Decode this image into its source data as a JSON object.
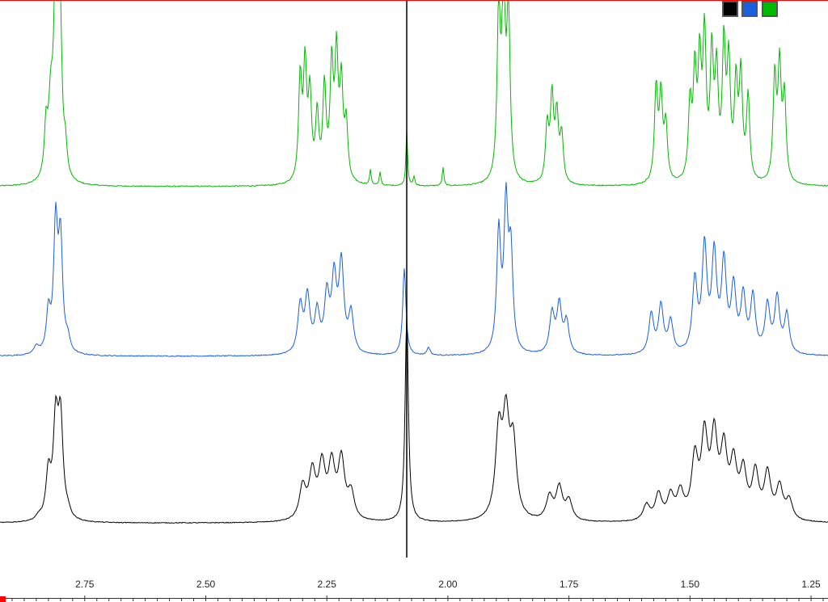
{
  "chart_data": {
    "type": "line",
    "title": "",
    "xlabel": "",
    "ylabel": "",
    "x_reversed": true,
    "xlim": [
      2.925,
      1.215
    ],
    "ylim": [
      0,
      1
    ],
    "grid": false,
    "x_ticks": [
      2.75,
      2.5,
      2.25,
      2.0,
      1.75,
      1.5,
      1.25
    ],
    "x_tick_labels": [
      "2.75",
      "2.50",
      "2.25",
      "2.00",
      "1.75",
      "1.50",
      "1.25"
    ],
    "series": [
      {
        "color": "#00bb00",
        "offset": 0.67,
        "scale": 0.33,
        "peaks": [
          [
            2.82,
            0.4,
            0.006
          ],
          [
            2.81,
            1.0,
            0.004
          ],
          [
            2.805,
            0.75,
            0.004
          ],
          [
            2.8,
            0.55,
            0.004
          ],
          [
            2.79,
            0.15,
            0.004
          ],
          [
            2.83,
            0.25,
            0.004
          ],
          [
            2.305,
            0.55,
            0.004
          ],
          [
            2.295,
            0.6,
            0.004
          ],
          [
            2.285,
            0.45,
            0.004
          ],
          [
            2.27,
            0.35,
            0.004
          ],
          [
            2.255,
            0.5,
            0.004
          ],
          [
            2.24,
            0.6,
            0.004
          ],
          [
            2.23,
            0.65,
            0.004
          ],
          [
            2.22,
            0.5,
            0.004
          ],
          [
            2.21,
            0.3,
            0.004
          ],
          [
            2.16,
            0.08,
            0.002
          ],
          [
            2.14,
            0.07,
            0.002
          ],
          [
            2.085,
            0.3,
            0.002
          ],
          [
            2.07,
            0.05,
            0.002
          ],
          [
            2.01,
            0.1,
            0.002
          ],
          [
            1.895,
            0.9,
            0.004
          ],
          [
            1.885,
            1.0,
            0.004
          ],
          [
            1.875,
            0.9,
            0.004
          ],
          [
            1.795,
            0.3,
            0.004
          ],
          [
            1.785,
            0.45,
            0.004
          ],
          [
            1.775,
            0.35,
            0.004
          ],
          [
            1.765,
            0.25,
            0.004
          ],
          [
            1.57,
            0.5,
            0.004
          ],
          [
            1.56,
            0.45,
            0.004
          ],
          [
            1.55,
            0.3,
            0.004
          ],
          [
            1.5,
            0.4,
            0.004
          ],
          [
            1.49,
            0.55,
            0.004
          ],
          [
            1.48,
            0.6,
            0.004
          ],
          [
            1.47,
            0.75,
            0.004
          ],
          [
            1.455,
            0.65,
            0.004
          ],
          [
            1.445,
            0.55,
            0.004
          ],
          [
            1.43,
            0.7,
            0.004
          ],
          [
            1.42,
            0.6,
            0.004
          ],
          [
            1.405,
            0.5,
            0.004
          ],
          [
            1.395,
            0.55,
            0.004
          ],
          [
            1.38,
            0.45,
            0.004
          ],
          [
            1.325,
            0.55,
            0.004
          ],
          [
            1.315,
            0.6,
            0.004
          ],
          [
            1.305,
            0.45,
            0.004
          ]
        ]
      },
      {
        "color": "#1a5fdd",
        "offset": 0.37,
        "scale": 0.28,
        "peaks": [
          [
            2.85,
            0.05,
            0.006
          ],
          [
            2.825,
            0.25,
            0.005
          ],
          [
            2.81,
            0.8,
            0.005
          ],
          [
            2.8,
            0.7,
            0.005
          ],
          [
            2.785,
            0.08,
            0.005
          ],
          [
            2.305,
            0.3,
            0.006
          ],
          [
            2.29,
            0.35,
            0.006
          ],
          [
            2.27,
            0.25,
            0.006
          ],
          [
            2.25,
            0.35,
            0.006
          ],
          [
            2.235,
            0.45,
            0.006
          ],
          [
            2.22,
            0.55,
            0.006
          ],
          [
            2.2,
            0.25,
            0.006
          ],
          [
            2.09,
            0.55,
            0.004
          ],
          [
            2.04,
            0.05,
            0.004
          ],
          [
            1.895,
            0.75,
            0.005
          ],
          [
            1.88,
            0.9,
            0.005
          ],
          [
            1.87,
            0.6,
            0.005
          ],
          [
            1.785,
            0.25,
            0.006
          ],
          [
            1.77,
            0.3,
            0.006
          ],
          [
            1.755,
            0.2,
            0.006
          ],
          [
            1.58,
            0.25,
            0.006
          ],
          [
            1.56,
            0.3,
            0.006
          ],
          [
            1.54,
            0.2,
            0.006
          ],
          [
            1.49,
            0.45,
            0.006
          ],
          [
            1.47,
            0.65,
            0.006
          ],
          [
            1.45,
            0.6,
            0.006
          ],
          [
            1.43,
            0.55,
            0.006
          ],
          [
            1.41,
            0.4,
            0.006
          ],
          [
            1.39,
            0.35,
            0.006
          ],
          [
            1.37,
            0.35,
            0.006
          ],
          [
            1.34,
            0.3,
            0.006
          ],
          [
            1.32,
            0.35,
            0.006
          ],
          [
            1.3,
            0.25,
            0.006
          ]
        ]
      },
      {
        "color": "#000000",
        "offset": 0.075,
        "scale": 0.23,
        "peaks": [
          [
            2.845,
            0.03,
            0.006
          ],
          [
            2.825,
            0.35,
            0.006
          ],
          [
            2.81,
            0.72,
            0.006
          ],
          [
            2.8,
            0.75,
            0.006
          ],
          [
            2.785,
            0.05,
            0.006
          ],
          [
            2.3,
            0.25,
            0.008
          ],
          [
            2.28,
            0.35,
            0.008
          ],
          [
            2.26,
            0.4,
            0.008
          ],
          [
            2.24,
            0.4,
            0.008
          ],
          [
            2.22,
            0.45,
            0.008
          ],
          [
            2.2,
            0.2,
            0.008
          ],
          [
            2.085,
            1.6,
            0.004
          ],
          [
            1.895,
            0.65,
            0.008
          ],
          [
            1.88,
            0.72,
            0.008
          ],
          [
            1.865,
            0.55,
            0.008
          ],
          [
            1.79,
            0.18,
            0.008
          ],
          [
            1.77,
            0.25,
            0.008
          ],
          [
            1.75,
            0.15,
            0.008
          ],
          [
            1.59,
            0.12,
            0.008
          ],
          [
            1.565,
            0.2,
            0.008
          ],
          [
            1.54,
            0.18,
            0.008
          ],
          [
            1.52,
            0.2,
            0.008
          ],
          [
            1.49,
            0.45,
            0.008
          ],
          [
            1.47,
            0.6,
            0.008
          ],
          [
            1.45,
            0.6,
            0.008
          ],
          [
            1.43,
            0.5,
            0.008
          ],
          [
            1.41,
            0.4,
            0.008
          ],
          [
            1.39,
            0.35,
            0.008
          ],
          [
            1.365,
            0.35,
            0.008
          ],
          [
            1.34,
            0.35,
            0.008
          ],
          [
            1.315,
            0.25,
            0.008
          ],
          [
            1.295,
            0.15,
            0.008
          ]
        ]
      }
    ],
    "legend_swatches": [
      {
        "color": "#000000",
        "icon": "color-swatch-black"
      },
      {
        "color": "#1a5fdd",
        "icon": "color-swatch-blue"
      },
      {
        "color": "#00bb00",
        "icon": "color-swatch-green"
      }
    ],
    "cursor_value": 2.085,
    "colors": {
      "top_border": "#ff0000",
      "marker": "#ff0000"
    }
  }
}
